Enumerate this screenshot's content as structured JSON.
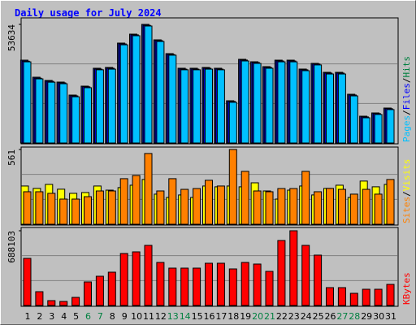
{
  "chart_data": [
    {
      "type": "bar",
      "title": "Daily usage for July 2024",
      "ylim": [
        0,
        53634
      ],
      "yticks": [
        53634
      ],
      "legend_separator": "/",
      "series": [
        {
          "name": "Pages",
          "color": "#00c0ff",
          "legend_color": "#00c0ff",
          "values": [
            36700,
            29000,
            27500,
            26800,
            20900,
            25000,
            33100,
            33400,
            44400,
            48500,
            52900,
            45900,
            39700,
            33100,
            33100,
            33400,
            33100,
            18400,
            37100,
            36000,
            33800,
            36700,
            36700,
            32700,
            35300,
            31200,
            31200,
            21300,
            11400,
            12900,
            15100
          ]
        },
        {
          "name": "Files",
          "color": "#0000ff",
          "legend_color": "#0000ff",
          "values": [
            37000,
            29300,
            27900,
            27200,
            21300,
            25400,
            33400,
            33800,
            44800,
            48900,
            53200,
            46300,
            40000,
            33400,
            33400,
            33800,
            33400,
            18800,
            37500,
            36400,
            34200,
            37100,
            37100,
            33100,
            35700,
            31600,
            31600,
            21700,
            11800,
            13300,
            15500
          ]
        },
        {
          "name": "Hits",
          "color": "#102090",
          "legend_color": "#008040",
          "values": [
            37460,
            29750,
            28280,
            27550,
            21670,
            25710,
            33800,
            34160,
            45180,
            49220,
            53634,
            46650,
            40410,
            33800,
            33800,
            34160,
            33800,
            19100,
            37840,
            36730,
            34530,
            37460,
            37460,
            33430,
            36000,
            31960,
            31960,
            22040,
            12120,
            13590,
            15800
          ]
        }
      ]
    },
    {
      "type": "bar",
      "ylim": [
        0,
        561
      ],
      "yticks": [
        561
      ],
      "legend_separator": "/",
      "series": [
        {
          "name": "Sites",
          "color": "#ff8000",
          "legend_color": "#ff8000",
          "values": [
            244,
            244,
            232,
            189,
            189,
            207,
            250,
            250,
            342,
            366,
            531,
            250,
            342,
            262,
            268,
            330,
            287,
            561,
            397,
            250,
            244,
            268,
            268,
            397,
            244,
            269,
            262,
            226,
            262,
            226,
            336
          ]
        },
        {
          "name": "Visits",
          "color": "#ffff00",
          "legend_color": "#ffff00",
          "values": [
            287,
            269,
            299,
            263,
            232,
            238,
            287,
            256,
            275,
            293,
            336,
            226,
            201,
            220,
            201,
            287,
            281,
            287,
            281,
            311,
            250,
            189,
            256,
            287,
            220,
            269,
            293,
            201,
            324,
            281,
            299
          ]
        }
      ]
    },
    {
      "type": "bar",
      "ylim": [
        0,
        688103
      ],
      "yticks": [
        688103
      ],
      "categories": [
        "1",
        "2",
        "3",
        "4",
        "5",
        "6",
        "7",
        "8",
        "9",
        "10",
        "11",
        "12",
        "13",
        "14",
        "15",
        "16",
        "17",
        "18",
        "19",
        "20",
        "21",
        "22",
        "23",
        "24",
        "25",
        "26",
        "27",
        "28",
        "29",
        "30",
        "31"
      ],
      "category_colors": [
        "#000000",
        "#000000",
        "#000000",
        "#000000",
        "#000000",
        "#008040",
        "#008040",
        "#000000",
        "#000000",
        "#000000",
        "#000000",
        "#000000",
        "#008040",
        "#008040",
        "#000000",
        "#000000",
        "#000000",
        "#000000",
        "#000000",
        "#008040",
        "#008040",
        "#000000",
        "#000000",
        "#000000",
        "#000000",
        "#000000",
        "#008040",
        "#008040",
        "#000000",
        "#000000",
        "#000000"
      ],
      "series": [
        {
          "name": "KBytes",
          "color": "#ff0000",
          "legend_color": "#ff0000",
          "values": [
            433840,
            127160,
            44890,
            37400,
            74800,
            216920,
            269280,
            306680,
            478720,
            493680,
            553520,
            396440,
            344080,
            344080,
            344080,
            388960,
            388960,
            336600,
            396440,
            381480,
            314160,
            598400,
            688103,
            553520,
            463760,
            164560,
            164560,
            112200,
            149600,
            149600,
            194480
          ]
        }
      ]
    }
  ]
}
